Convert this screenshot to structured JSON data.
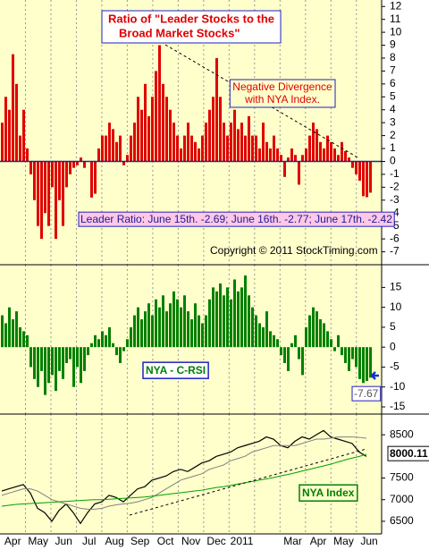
{
  "chart_data": [
    {
      "type": "bar",
      "title": [
        "Ratio of  \"Leader Stocks to the",
        "Broad Market Stocks\""
      ],
      "divergence_note": [
        "Negative Divergence",
        "with NYA Index."
      ],
      "value_note": "Leader Ratio: June 15th. -2.69; June 16th. -2.77; June 17th. -2.42",
      "copyright": "Copyright © 2011 StockTiming.com",
      "color": "#e00000",
      "values": [
        3,
        5,
        4,
        8.3,
        6,
        2,
        4,
        1,
        -1,
        -3,
        -5,
        -6,
        -4,
        -5,
        -2,
        -6,
        -3,
        -5,
        -2,
        -1,
        -0.5,
        -0.3,
        0.3,
        -0.5,
        0,
        -2.8,
        -2.5,
        1,
        2,
        2,
        3,
        2.5,
        1.5,
        2,
        -0.3,
        0.5,
        2,
        3,
        5,
        4,
        6,
        3.5,
        5,
        7,
        9,
        6,
        5,
        4,
        3,
        2,
        1,
        2,
        3,
        2,
        1.5,
        1,
        2,
        3,
        4,
        5,
        8,
        5,
        3,
        2,
        3,
        4,
        2.5,
        3,
        2,
        3.5,
        2,
        2,
        1,
        3,
        1.5,
        1,
        2,
        1,
        0.5,
        -1.2,
        0.3,
        1,
        0.5,
        -1.8,
        0.5,
        1,
        2,
        3,
        2.5,
        1.5,
        1,
        2,
        1.5,
        1,
        0.5,
        1.5,
        0.8,
        0.3,
        -0.5,
        -1,
        -1.5,
        -2.69,
        -2.77,
        -2.42
      ],
      "ylim": [
        -8,
        12.5
      ],
      "yticks": [
        12,
        11,
        10,
        9,
        8,
        7,
        6,
        5,
        4,
        3,
        2,
        1,
        0,
        -1,
        -2,
        -3,
        -4,
        -5,
        -6,
        -7
      ],
      "grid": true
    },
    {
      "type": "bar",
      "label": "NYA - C-RSI",
      "color": "#008000",
      "values": [
        8,
        6,
        10,
        7,
        9,
        5,
        4,
        3,
        -5,
        -8,
        -10,
        -6,
        -12,
        -9,
        -7,
        -11,
        -6,
        -8,
        -4,
        -3,
        -10,
        -5,
        -9,
        -6,
        -2,
        1,
        3,
        2,
        4,
        3,
        5,
        1,
        -2,
        -4,
        -1,
        2,
        5,
        8,
        10,
        7,
        9,
        11,
        8,
        12,
        10,
        13,
        9,
        11,
        14,
        12,
        10,
        13,
        9,
        7,
        11,
        8,
        6,
        8,
        12,
        15,
        14,
        16,
        13,
        15,
        12,
        17,
        14,
        15,
        18,
        13,
        10,
        8,
        6,
        5,
        9,
        4,
        3,
        2,
        -2,
        -4,
        -6,
        1,
        3,
        -3,
        -7,
        5,
        8,
        10,
        9,
        7,
        6,
        4,
        2,
        -1,
        3,
        -2,
        -4,
        -6,
        -3,
        -5,
        -8,
        -9,
        -8.5,
        -7.67
      ],
      "ylim": [
        -16.8,
        20.7
      ],
      "yticks": [
        15,
        10,
        5,
        0,
        -5,
        -10,
        -15
      ],
      "grid": true
    },
    {
      "type": "line",
      "months": [
        "Apr",
        "May",
        "Jun",
        "Jul",
        "Aug",
        "Sep",
        "Oct",
        "Nov",
        "Dec",
        "2011",
        null,
        "Mar",
        "Apr",
        "May",
        "Jun"
      ],
      "series": [
        {
          "name": "NYA Index",
          "color": "#000000",
          "values": [
            7200,
            7250,
            7300,
            7350,
            7150,
            6800,
            6700,
            6500,
            6750,
            6900,
            6700,
            6450,
            6700,
            6900,
            6950,
            7100,
            7050,
            6950,
            7100,
            7250,
            7300,
            7450,
            7500,
            7550,
            7650,
            7700,
            7650,
            7750,
            7850,
            7900,
            8000,
            8050,
            8100,
            8200,
            8250,
            8300,
            8350,
            8450,
            8400,
            8250,
            8200,
            8350,
            8450,
            8400,
            8500,
            8600,
            8450,
            8400,
            8350,
            8300,
            8100,
            8000.11
          ]
        },
        {
          "color": "#808080",
          "values": [
            7100,
            7150,
            7200,
            7250,
            7250,
            7200,
            7100,
            7000,
            6950,
            6900,
            6850,
            6800,
            6780,
            6780,
            6800,
            6850,
            6880,
            6900,
            6920,
            6950,
            7000,
            7050,
            7150,
            7250,
            7350,
            7450,
            7500,
            7550,
            7600,
            7700,
            7750,
            7800,
            7900,
            7950,
            8000,
            8100,
            8150,
            8200,
            8250,
            8250,
            8250,
            8250,
            8300,
            8350,
            8400,
            8400,
            8420,
            8450,
            8450,
            8450,
            8440,
            8420
          ]
        },
        {
          "color": "#00a000",
          "values": [
            6850,
            6870,
            6890,
            6900,
            6910,
            6920,
            6930,
            6940,
            6950,
            6960,
            6970,
            6980,
            6990,
            7000,
            7000,
            7010,
            7020,
            7030,
            7040,
            7050,
            7060,
            7080,
            7100,
            7120,
            7140,
            7160,
            7180,
            7200,
            7220,
            7250,
            7280,
            7300,
            7330,
            7360,
            7390,
            7420,
            7450,
            7480,
            7510,
            7550,
            7580,
            7620,
            7660,
            7700,
            7740,
            7780,
            7820,
            7870,
            7920,
            7960,
            8000,
            8050
          ]
        }
      ],
      "ylim": [
        6208,
        8979
      ],
      "yticks": [
        6500,
        7000,
        7500,
        8500
      ],
      "grid": true
    }
  ]
}
